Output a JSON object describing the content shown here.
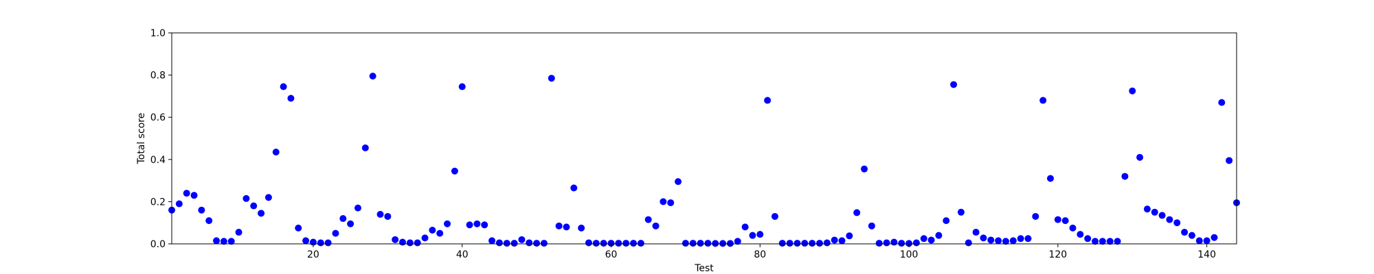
{
  "chart_data": {
    "type": "scatter",
    "xlabel": "Test",
    "ylabel": "Total score",
    "xlim": [
      1,
      144
    ],
    "ylim": [
      0,
      1
    ],
    "x_ticks": [
      20,
      40,
      60,
      80,
      100,
      120,
      140
    ],
    "y_ticks": [
      0.0,
      0.2,
      0.4,
      0.6,
      0.8,
      1.0
    ],
    "x_tick_labels": [
      "20",
      "40",
      "60",
      "80",
      "100",
      "120",
      "140"
    ],
    "y_tick_labels": [
      "0.0",
      "0.2",
      "0.4",
      "0.6",
      "0.8",
      "1.0"
    ],
    "grid": false,
    "marker_color": "#0000ff",
    "x": [
      1,
      2,
      3,
      4,
      5,
      6,
      7,
      8,
      9,
      10,
      11,
      12,
      13,
      14,
      15,
      16,
      17,
      18,
      19,
      20,
      21,
      22,
      23,
      24,
      25,
      26,
      27,
      28,
      29,
      30,
      31,
      32,
      33,
      34,
      35,
      36,
      37,
      38,
      39,
      40,
      41,
      42,
      43,
      44,
      45,
      46,
      47,
      48,
      49,
      50,
      51,
      52,
      53,
      54,
      55,
      56,
      57,
      58,
      59,
      60,
      61,
      62,
      63,
      64,
      65,
      66,
      67,
      68,
      69,
      70,
      71,
      72,
      73,
      74,
      75,
      76,
      77,
      78,
      79,
      80,
      81,
      82,
      83,
      84,
      85,
      86,
      87,
      88,
      89,
      90,
      91,
      92,
      93,
      94,
      95,
      96,
      97,
      98,
      99,
      100,
      101,
      102,
      103,
      104,
      105,
      106,
      107,
      108,
      109,
      110,
      111,
      112,
      113,
      114,
      115,
      116,
      117,
      118,
      119,
      120,
      121,
      122,
      123,
      124,
      125,
      126,
      127,
      128,
      129,
      130,
      131,
      132,
      133,
      134,
      135,
      136,
      137,
      138,
      139,
      140,
      141,
      142,
      143,
      144
    ],
    "y": [
      0.16,
      0.19,
      0.24,
      0.23,
      0.16,
      0.11,
      0.015,
      0.012,
      0.012,
      0.055,
      0.215,
      0.18,
      0.145,
      0.22,
      0.435,
      0.745,
      0.69,
      0.075,
      0.015,
      0.008,
      0.005,
      0.005,
      0.05,
      0.12,
      0.095,
      0.17,
      0.455,
      0.795,
      0.14,
      0.13,
      0.02,
      0.008,
      0.005,
      0.005,
      0.028,
      0.065,
      0.05,
      0.095,
      0.345,
      0.745,
      0.09,
      0.095,
      0.09,
      0.015,
      0.005,
      0.003,
      0.003,
      0.02,
      0.005,
      0.003,
      0.003,
      0.785,
      0.085,
      0.08,
      0.265,
      0.075,
      0.005,
      0.003,
      0.003,
      0.003,
      0.003,
      0.003,
      0.003,
      0.003,
      0.115,
      0.085,
      0.2,
      0.195,
      0.295,
      0.003,
      0.003,
      0.003,
      0.003,
      0.002,
      0.002,
      0.002,
      0.012,
      0.08,
      0.04,
      0.045,
      0.68,
      0.13,
      0.003,
      0.003,
      0.003,
      0.003,
      0.003,
      0.003,
      0.005,
      0.018,
      0.015,
      0.038,
      0.148,
      0.355,
      0.085,
      0.003,
      0.005,
      0.008,
      0.003,
      0.002,
      0.005,
      0.025,
      0.018,
      0.04,
      0.11,
      0.755,
      0.15,
      0.005,
      0.055,
      0.028,
      0.018,
      0.015,
      0.012,
      0.015,
      0.025,
      0.025,
      0.13,
      0.68,
      0.31,
      0.115,
      0.11,
      0.075,
      0.045,
      0.025,
      0.012,
      0.012,
      0.012,
      0.012,
      0.32,
      0.725,
      0.41,
      0.165,
      0.15,
      0.135,
      0.115,
      0.1,
      0.055,
      0.04,
      0.015,
      0.015,
      0.03,
      0.67,
      0.395,
      0.195
    ]
  }
}
